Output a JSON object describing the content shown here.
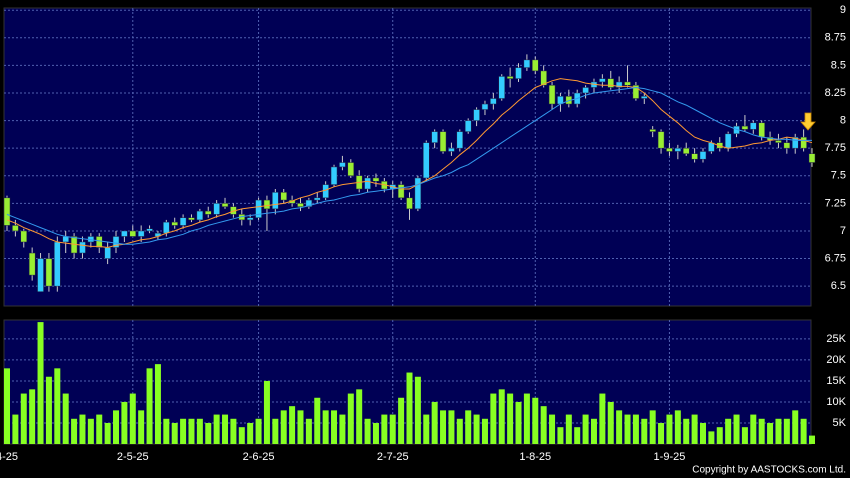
{
  "copyright": "Copyright by AASTOCKS.com Ltd.",
  "chart_data": [
    {
      "type": "candlestick",
      "categories": [
        "4-25",
        null,
        null,
        null,
        null,
        null,
        null,
        null,
        null,
        null,
        null,
        null,
        null,
        null,
        null,
        "2-5-25",
        null,
        null,
        null,
        null,
        null,
        null,
        null,
        null,
        null,
        null,
        null,
        null,
        null,
        null,
        "2-6-25",
        null,
        null,
        null,
        null,
        null,
        null,
        null,
        null,
        null,
        null,
        null,
        null,
        null,
        null,
        null,
        "2-7-25",
        null,
        null,
        null,
        null,
        null,
        null,
        null,
        null,
        null,
        null,
        null,
        null,
        null,
        null,
        null,
        null,
        "1-8-25",
        null,
        null,
        null,
        null,
        null,
        null,
        null,
        null,
        null,
        null,
        null,
        null,
        null,
        null,
        null,
        "1-9-25",
        null,
        null,
        null,
        null,
        null,
        null,
        null,
        null,
        null,
        null,
        null,
        null,
        null,
        null,
        null,
        null,
        null
      ],
      "open": [
        7.3,
        7.05,
        7.0,
        6.8,
        6.45,
        6.75,
        6.5,
        6.9,
        6.95,
        6.8,
        6.9,
        6.95,
        6.75,
        6.85,
        6.95,
        7.0,
        6.95,
        7.0,
        6.95,
        6.98,
        7.08,
        7.05,
        7.12,
        7.1,
        7.18,
        7.15,
        7.25,
        7.22,
        7.15,
        7.1,
        7.12,
        7.28,
        7.2,
        7.35,
        7.28,
        7.25,
        7.22,
        7.28,
        7.3,
        7.42,
        7.58,
        7.62,
        7.5,
        7.38,
        7.48,
        7.45,
        7.38,
        7.42,
        7.3,
        7.2,
        7.48,
        7.8,
        7.9,
        7.72,
        7.75,
        7.9,
        8.0,
        8.1,
        8.15,
        8.2,
        8.4,
        8.38,
        8.48,
        8.55,
        8.45,
        8.32,
        8.15,
        8.22,
        8.15,
        8.25,
        8.3,
        8.35,
        8.38,
        8.3,
        8.35,
        8.32,
        8.2,
        7.92,
        7.9,
        7.75,
        7.72,
        7.75,
        7.7,
        7.65,
        7.72,
        7.8,
        7.75,
        7.88,
        7.95,
        7.92,
        7.98,
        7.85,
        7.82,
        7.8,
        7.75,
        7.85,
        7.7
      ],
      "high": [
        7.32,
        7.1,
        7.02,
        6.85,
        6.8,
        6.8,
        6.95,
        7.0,
        6.98,
        6.95,
        6.98,
        6.98,
        6.9,
        7.0,
        7.0,
        7.05,
        7.05,
        7.05,
        7.0,
        7.1,
        7.12,
        7.15,
        7.15,
        7.2,
        7.22,
        7.28,
        7.3,
        7.25,
        7.2,
        7.15,
        7.3,
        7.32,
        7.38,
        7.38,
        7.32,
        7.3,
        7.3,
        7.35,
        7.45,
        7.6,
        7.68,
        7.65,
        7.55,
        7.5,
        7.52,
        7.48,
        7.45,
        7.45,
        7.35,
        7.5,
        7.82,
        7.92,
        7.92,
        7.8,
        7.92,
        8.02,
        8.12,
        8.18,
        8.25,
        8.42,
        8.48,
        8.52,
        8.6,
        8.58,
        8.5,
        8.35,
        8.25,
        8.28,
        8.28,
        8.32,
        8.38,
        8.42,
        8.45,
        8.4,
        8.5,
        8.35,
        8.25,
        7.95,
        7.92,
        7.8,
        7.78,
        7.8,
        7.75,
        7.75,
        7.82,
        7.85,
        7.9,
        7.98,
        8.05,
        8.0,
        8.0,
        7.9,
        7.88,
        7.85,
        7.88,
        7.92,
        7.75
      ],
      "low": [
        7.0,
        6.95,
        6.85,
        6.55,
        6.45,
        6.45,
        6.45,
        6.8,
        6.75,
        6.75,
        6.85,
        6.8,
        6.7,
        6.8,
        6.9,
        6.95,
        6.9,
        6.98,
        6.92,
        6.95,
        7.02,
        7.02,
        7.08,
        7.08,
        7.12,
        7.12,
        7.2,
        7.12,
        7.05,
        7.05,
        7.1,
        7.0,
        7.15,
        7.25,
        7.22,
        7.18,
        7.2,
        7.25,
        7.28,
        7.4,
        7.55,
        7.48,
        7.35,
        7.35,
        7.4,
        7.35,
        7.3,
        7.28,
        7.1,
        7.18,
        7.45,
        7.75,
        7.7,
        7.68,
        7.72,
        7.88,
        7.95,
        8.05,
        8.1,
        8.18,
        8.3,
        8.35,
        8.45,
        8.42,
        8.3,
        8.1,
        8.08,
        8.12,
        8.12,
        8.2,
        8.25,
        8.3,
        8.28,
        8.25,
        8.3,
        8.18,
        8.15,
        7.85,
        7.7,
        7.68,
        7.65,
        7.68,
        7.62,
        7.62,
        7.7,
        7.72,
        7.72,
        7.85,
        7.9,
        7.88,
        7.82,
        7.78,
        7.75,
        7.7,
        7.7,
        7.72,
        7.58
      ],
      "close": [
        7.05,
        7.0,
        6.9,
        6.6,
        6.75,
        6.5,
        6.9,
        6.95,
        6.8,
        6.9,
        6.95,
        6.85,
        6.85,
        6.95,
        7.0,
        6.95,
        7.0,
        7.02,
        6.98,
        7.08,
        7.05,
        7.12,
        7.1,
        7.18,
        7.15,
        7.25,
        7.22,
        7.15,
        7.1,
        7.12,
        7.28,
        7.2,
        7.35,
        7.28,
        7.25,
        7.22,
        7.28,
        7.3,
        7.42,
        7.58,
        7.62,
        7.5,
        7.38,
        7.48,
        7.45,
        7.38,
        7.42,
        7.3,
        7.2,
        7.48,
        7.8,
        7.9,
        7.72,
        7.75,
        7.9,
        8.0,
        8.1,
        8.15,
        8.2,
        8.4,
        8.38,
        8.48,
        8.55,
        8.45,
        8.32,
        8.15,
        8.22,
        8.15,
        8.25,
        8.3,
        8.35,
        8.38,
        8.3,
        8.35,
        8.32,
        8.2,
        8.22,
        7.9,
        7.75,
        7.72,
        7.75,
        7.7,
        7.65,
        7.72,
        7.8,
        7.75,
        7.88,
        7.95,
        7.92,
        7.98,
        7.85,
        7.82,
        7.8,
        7.75,
        7.85,
        7.75,
        7.62
      ],
      "up_color": "#33ccff",
      "down_color": "#99ee33",
      "overlays": [
        {
          "color": "#ff9933",
          "values": [
            7.1,
            7.07,
            7.03,
            7.0,
            6.97,
            6.93,
            6.9,
            6.89,
            6.88,
            6.87,
            6.86,
            6.86,
            6.85,
            6.87,
            6.88,
            6.9,
            6.92,
            6.93,
            6.95,
            6.98,
            7.0,
            7.03,
            7.05,
            7.08,
            7.1,
            7.13,
            7.15,
            7.18,
            7.2,
            7.21,
            7.22,
            7.23,
            7.24,
            7.25,
            7.27,
            7.3,
            7.32,
            7.35,
            7.37,
            7.4,
            7.42,
            7.43,
            7.44,
            7.45,
            7.43,
            7.42,
            7.4,
            7.38,
            7.38,
            7.42,
            7.46,
            7.5,
            7.56,
            7.62,
            7.69,
            7.75,
            7.82,
            7.9,
            7.97,
            8.05,
            8.11,
            8.18,
            8.24,
            8.3,
            8.33,
            8.36,
            8.38,
            8.37,
            8.36,
            8.34,
            8.33,
            8.32,
            8.32,
            8.31,
            8.31,
            8.3,
            8.25,
            8.18,
            8.1,
            8.04,
            7.98,
            7.91,
            7.85,
            7.82,
            7.8,
            7.77,
            7.75,
            7.76,
            7.77,
            7.79,
            7.8,
            7.82,
            7.83,
            7.85,
            7.84,
            7.82,
            7.8
          ]
        },
        {
          "color": "#3399ee",
          "values": [
            7.15,
            7.12,
            7.09,
            7.06,
            7.03,
            7.0,
            6.97,
            6.95,
            6.94,
            6.93,
            6.92,
            6.91,
            6.9,
            6.89,
            6.88,
            6.88,
            6.89,
            6.9,
            6.92,
            6.93,
            6.95,
            6.97,
            7.0,
            7.02,
            7.05,
            7.07,
            7.09,
            7.11,
            7.13,
            7.14,
            7.15,
            7.16,
            7.17,
            7.18,
            7.2,
            7.21,
            7.23,
            7.25,
            7.27,
            7.28,
            7.3,
            7.32,
            7.33,
            7.35,
            7.36,
            7.37,
            7.38,
            7.39,
            7.4,
            7.42,
            7.45,
            7.48,
            7.5,
            7.53,
            7.57,
            7.6,
            7.65,
            7.7,
            7.75,
            7.8,
            7.85,
            7.9,
            7.95,
            8.0,
            8.05,
            8.1,
            8.15,
            8.18,
            8.2,
            8.23,
            8.25,
            8.26,
            8.27,
            8.28,
            8.29,
            8.3,
            8.29,
            8.27,
            8.25,
            8.21,
            8.17,
            8.14,
            8.1,
            8.06,
            8.02,
            7.98,
            7.95,
            7.92,
            7.9,
            7.87,
            7.85,
            7.84,
            7.83,
            7.83,
            7.82,
            7.82,
            7.82
          ]
        }
      ],
      "ylim": [
        6.32,
        9.02
      ],
      "yticks": [
        6.5,
        6.75,
        7,
        7.25,
        7.5,
        7.75,
        8,
        8.25,
        8.5,
        8.75,
        9
      ],
      "grid": true
    },
    {
      "type": "bar",
      "color": "#88ff22",
      "values": [
        18000,
        7000,
        12000,
        13000,
        29000,
        16000,
        18000,
        12000,
        6000,
        7000,
        6000,
        7000,
        5000,
        8000,
        10000,
        12000,
        8000,
        18000,
        19000,
        6000,
        5000,
        6000,
        6000,
        6000,
        5000,
        7000,
        7000,
        6000,
        4000,
        5000,
        6000,
        15000,
        6000,
        8000,
        9000,
        8000,
        6000,
        11000,
        8000,
        8000,
        7000,
        12000,
        13000,
        6000,
        5000,
        7000,
        7000,
        11000,
        17000,
        16000,
        7000,
        10000,
        8000,
        8000,
        6000,
        8000,
        7000,
        6000,
        12000,
        13000,
        12000,
        10000,
        12000,
        11000,
        9000,
        7000,
        4000,
        7000,
        4000,
        7000,
        6000,
        12000,
        10000,
        8000,
        7000,
        7000,
        6000,
        8000,
        5000,
        7000,
        8000,
        6000,
        7000,
        5000,
        3000,
        4000,
        6000,
        7000,
        4000,
        7000,
        6000,
        5000,
        6000,
        6000,
        8000,
        6000,
        2000
      ],
      "ylim": [
        0,
        29500
      ],
      "yticks": [
        {
          "value": 5000,
          "label": "5K"
        },
        {
          "value": 10000,
          "label": "10K"
        },
        {
          "value": 15000,
          "label": "15K"
        },
        {
          "value": 20000,
          "label": "20K"
        },
        {
          "value": 25000,
          "label": "25K"
        }
      ],
      "grid": true
    }
  ]
}
